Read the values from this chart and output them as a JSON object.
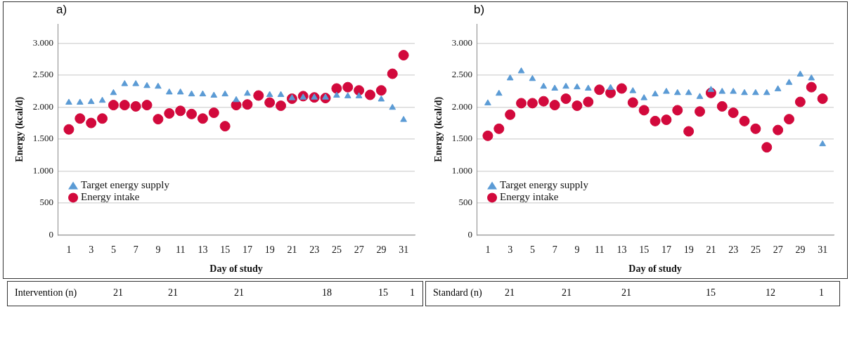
{
  "chart_data": [
    {
      "type": "scatter",
      "title": "a)",
      "xlabel": "Day of study",
      "ylabel": "Energy (kcal/d)",
      "x": [
        1,
        2,
        3,
        4,
        5,
        6,
        7,
        8,
        9,
        10,
        11,
        12,
        13,
        14,
        15,
        16,
        17,
        18,
        19,
        20,
        21,
        22,
        23,
        24,
        25,
        26,
        27,
        28,
        29,
        30,
        31
      ],
      "xlim": [
        0,
        32
      ],
      "xticks": [
        1,
        3,
        5,
        7,
        9,
        11,
        13,
        15,
        17,
        19,
        21,
        23,
        25,
        27,
        29,
        31
      ],
      "ylim": [
        0,
        3300
      ],
      "yticks": [
        {
          "value": 0,
          "label": "0"
        },
        {
          "value": 500,
          "label": "500"
        },
        {
          "value": 1000,
          "label": "1.000"
        },
        {
          "value": 1500,
          "label": "1.500"
        },
        {
          "value": 2000,
          "label": "2.000"
        },
        {
          "value": 2500,
          "label": "2.500"
        },
        {
          "value": 3000,
          "label": "3.000"
        }
      ],
      "grid": "y",
      "legend": "bottom left",
      "series": [
        {
          "name": "Target energy supply",
          "color": "#5b9bd5",
          "marker": "triangle",
          "values": [
            2070,
            2070,
            2080,
            2100,
            2220,
            2360,
            2360,
            2330,
            2320,
            2230,
            2230,
            2200,
            2200,
            2180,
            2200,
            2110,
            2210,
            null,
            2190,
            2190,
            2140,
            2150,
            2150,
            2150,
            2180,
            2170,
            2170,
            null,
            2120,
            1990,
            1800
          ]
        },
        {
          "name": "Energy intake",
          "color": "#d2093c",
          "marker": "circle",
          "values": [
            1650,
            1820,
            1750,
            1820,
            2030,
            2030,
            2010,
            2030,
            1810,
            1900,
            1940,
            1890,
            1820,
            1910,
            1700,
            2030,
            2040,
            2180,
            2070,
            2020,
            2130,
            2170,
            2150,
            2140,
            2290,
            2310,
            2260,
            2190,
            2260,
            2520,
            2810
          ]
        }
      ],
      "annotations": [
        "Intervention (n)",
        "21",
        "21",
        "21",
        "18",
        "15",
        "1"
      ]
    },
    {
      "type": "scatter",
      "title": "b)",
      "xlabel": "Day of study",
      "ylabel": "Energy (kcal/d)",
      "x": [
        1,
        2,
        3,
        4,
        5,
        6,
        7,
        8,
        9,
        10,
        11,
        12,
        13,
        14,
        15,
        16,
        17,
        18,
        19,
        20,
        21,
        22,
        23,
        24,
        25,
        26,
        27,
        28,
        29,
        30,
        31
      ],
      "xlim": [
        0,
        32
      ],
      "xticks": [
        1,
        3,
        5,
        7,
        9,
        11,
        13,
        15,
        17,
        19,
        21,
        23,
        25,
        27,
        29,
        31
      ],
      "ylim": [
        0,
        3300
      ],
      "yticks": [
        {
          "value": 0,
          "label": "0"
        },
        {
          "value": 500,
          "label": "500"
        },
        {
          "value": 1000,
          "label": "1.000"
        },
        {
          "value": 1500,
          "label": "1.500"
        },
        {
          "value": 2000,
          "label": "2.000"
        },
        {
          "value": 2500,
          "label": "2.500"
        },
        {
          "value": 3000,
          "label": "3.000"
        }
      ],
      "grid": "y",
      "legend": "bottom left",
      "series": [
        {
          "name": "Target energy supply",
          "color": "#5b9bd5",
          "marker": "triangle",
          "values": [
            2060,
            2210,
            2450,
            2560,
            2440,
            2320,
            2290,
            2320,
            2310,
            2290,
            null,
            2300,
            null,
            2250,
            2140,
            2200,
            2240,
            2220,
            2220,
            2160,
            2270,
            2240,
            2240,
            2220,
            2220,
            2220,
            2280,
            2380,
            2510,
            2450,
            1420
          ]
        },
        {
          "name": "Energy intake",
          "color": "#d2093c",
          "marker": "circle",
          "values": [
            1550,
            1660,
            1880,
            2060,
            2060,
            2090,
            2030,
            2130,
            2020,
            2080,
            2270,
            2220,
            2290,
            2070,
            1950,
            1780,
            1800,
            1950,
            1620,
            1930,
            2220,
            2010,
            1910,
            1780,
            1660,
            1370,
            1640,
            1810,
            2080,
            2310,
            2130
          ]
        }
      ],
      "annotations": [
        "Standard (n)",
        "21",
        "21",
        "21",
        "15",
        "12",
        "1"
      ]
    }
  ]
}
